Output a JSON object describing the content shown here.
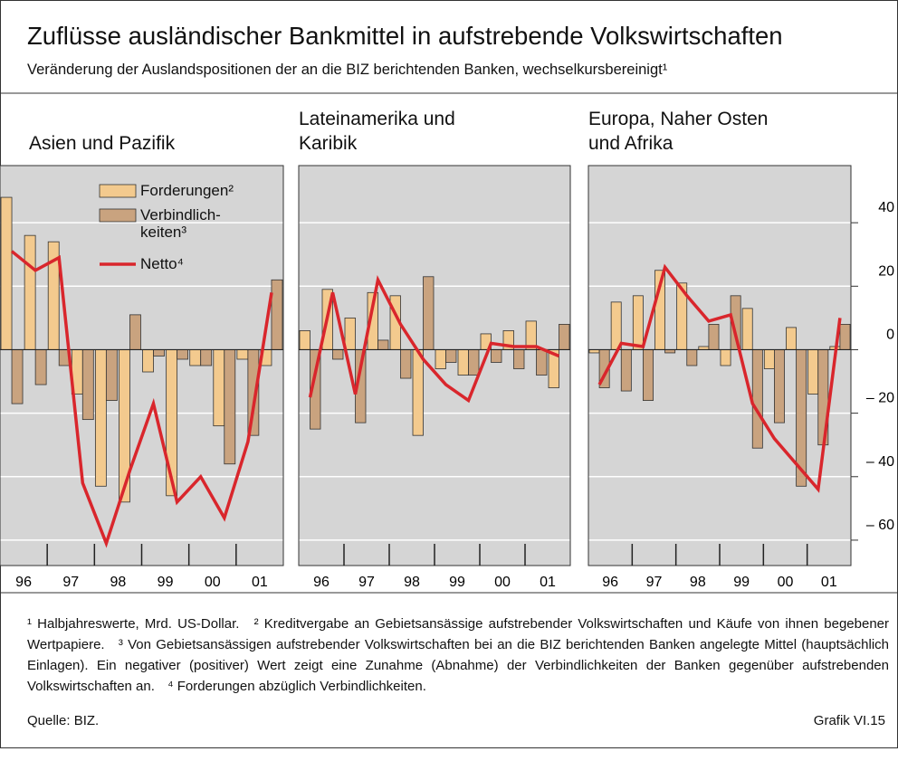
{
  "title": "Zuflüsse ausländischer Bankmittel in aufstrebende Volkswirtschaften",
  "subtitle": "Veränderung der Auslandspositionen der an die BIZ berichtenden Banken, wechselkursbereinigt¹",
  "notes": [
    "¹ Halbjahreswerte, Mrd. US-Dollar.",
    "² Kreditvergabe an Gebietsansässige aufstrebender Volkswirtschaften und Käufe von ihnen begebener Wertpapiere.",
    "³ Von Gebietsansässigen aufstrebender Volkswirtschaften bei an die BIZ berichtenden Banken angelegte Mittel (hauptsächlich Einlagen). Ein negativer (positiver) Wert zeigt eine Zunahme (Abnahme) der Verbindlichkeiten der Banken gegenüber aufstrebenden Volkswirtschaften an.",
    "⁴ Forderungen abzüglich Verbindlichkeiten."
  ],
  "source": "Quelle: BIZ.",
  "figure_id": "Grafik VI.15",
  "chart_data": [
    {
      "type": "bar_line",
      "title": "Asien und Pazifik",
      "legend": "upper right",
      "show_ytick_labels": false,
      "x": [
        1996.25,
        1996.75,
        1997.25,
        1997.75,
        1998.25,
        1998.75,
        1999.25,
        1999.75,
        2000.25,
        2000.75,
        2001.25,
        2001.75
      ],
      "xlim": [
        1996,
        2002
      ],
      "xticks": [
        {
          "value": 1996.5,
          "label": "96"
        },
        {
          "value": 1997.5,
          "label": "97"
        },
        {
          "value": 1998.5,
          "label": "98"
        },
        {
          "value": 1999.5,
          "label": "99"
        },
        {
          "value": 2000.5,
          "label": "00"
        },
        {
          "value": 2001.5,
          "label": "01"
        }
      ],
      "ylim": [
        -68,
        58
      ],
      "yticks": [
        {
          "value": -60,
          "label": "– 60"
        },
        {
          "value": -40,
          "label": "– 40"
        },
        {
          "value": -20,
          "label": "– 20"
        },
        0,
        20,
        40
      ],
      "series": [
        {
          "name": "Forderungen²",
          "color": "#f3ca8e",
          "values": [
            48,
            36,
            34,
            -14,
            -43,
            -48,
            -7,
            -46,
            -5,
            -24,
            -3,
            -5
          ]
        },
        {
          "name": "Verbindlich-\nkeiten³",
          "color": "#c9a37f",
          "values": [
            -17,
            -11,
            -5,
            -22,
            -16,
            11,
            -2,
            -3,
            -5,
            -36,
            -27,
            22
          ]
        },
        {
          "name": "Netto⁴",
          "color": "#d9262c",
          "values": [
            31,
            25,
            29,
            -42,
            -61,
            -38,
            -17,
            -48,
            -40,
            -53,
            -29,
            18
          ]
        }
      ]
    },
    {
      "type": "bar_line",
      "title": "Lateinamerika und\nKaribik",
      "show_ytick_labels": false,
      "x": [
        1996.25,
        1996.75,
        1997.25,
        1997.75,
        1998.25,
        1998.75,
        1999.25,
        1999.75,
        2000.25,
        2000.75,
        2001.25,
        2001.75
      ],
      "xlim": [
        1996,
        2002
      ],
      "xticks": [
        {
          "value": 1996.5,
          "label": "96"
        },
        {
          "value": 1997.5,
          "label": "97"
        },
        {
          "value": 1998.5,
          "label": "98"
        },
        {
          "value": 1999.5,
          "label": "99"
        },
        {
          "value": 2000.5,
          "label": "00"
        },
        {
          "value": 2001.5,
          "label": "01"
        }
      ],
      "ylim": [
        -68,
        58
      ],
      "yticks": [
        {
          "value": -60,
          "label": "– 60"
        },
        {
          "value": -40,
          "label": "– 40"
        },
        {
          "value": -20,
          "label": "– 20"
        },
        0,
        20,
        40
      ],
      "series": [
        {
          "name": "Forderungen²",
          "color": "#f3ca8e",
          "values": [
            6,
            19,
            10,
            18,
            17,
            -27,
            -6,
            -8,
            5,
            6,
            9,
            -12
          ]
        },
        {
          "name": "Verbindlich-\nkeiten³",
          "color": "#c9a37f",
          "values": [
            -25,
            -3,
            -23,
            3,
            -9,
            23,
            -4,
            -8,
            -4,
            -6,
            -8,
            8
          ]
        },
        {
          "name": "Netto⁴",
          "color": "#d9262c",
          "values": [
            -15,
            18,
            -14,
            22,
            8,
            -3,
            -11,
            -16,
            2,
            1,
            1,
            -2
          ]
        }
      ]
    },
    {
      "type": "bar_line",
      "title": "Europa, Naher Osten\nund Afrika",
      "show_ytick_labels": true,
      "x": [
        1996.25,
        1996.75,
        1997.25,
        1997.75,
        1998.25,
        1998.75,
        1999.25,
        1999.75,
        2000.25,
        2000.75,
        2001.25,
        2001.75
      ],
      "xlim": [
        1996,
        2002
      ],
      "xticks": [
        {
          "value": 1996.5,
          "label": "96"
        },
        {
          "value": 1997.5,
          "label": "97"
        },
        {
          "value": 1998.5,
          "label": "98"
        },
        {
          "value": 1999.5,
          "label": "99"
        },
        {
          "value": 2000.5,
          "label": "00"
        },
        {
          "value": 2001.5,
          "label": "01"
        }
      ],
      "ylim": [
        -68,
        58
      ],
      "yticks": [
        {
          "value": -60,
          "label": "– 60"
        },
        {
          "value": -40,
          "label": "– 40"
        },
        {
          "value": -20,
          "label": "– 20"
        },
        0,
        20,
        40
      ],
      "series": [
        {
          "name": "Forderungen²",
          "color": "#f3ca8e",
          "values": [
            -1,
            15,
            17,
            25,
            21,
            1,
            -5,
            13,
            -6,
            7,
            -14,
            1
          ]
        },
        {
          "name": "Verbindlich-\nkeiten³",
          "color": "#c9a37f",
          "values": [
            -12,
            -13,
            -16,
            -1,
            -5,
            8,
            17,
            -31,
            -23,
            -43,
            -30,
            8
          ]
        },
        {
          "name": "Netto⁴",
          "color": "#d9262c",
          "values": [
            -11,
            2,
            1,
            26,
            17,
            9,
            11,
            -17,
            -28,
            -36,
            -44,
            10
          ]
        }
      ]
    }
  ]
}
